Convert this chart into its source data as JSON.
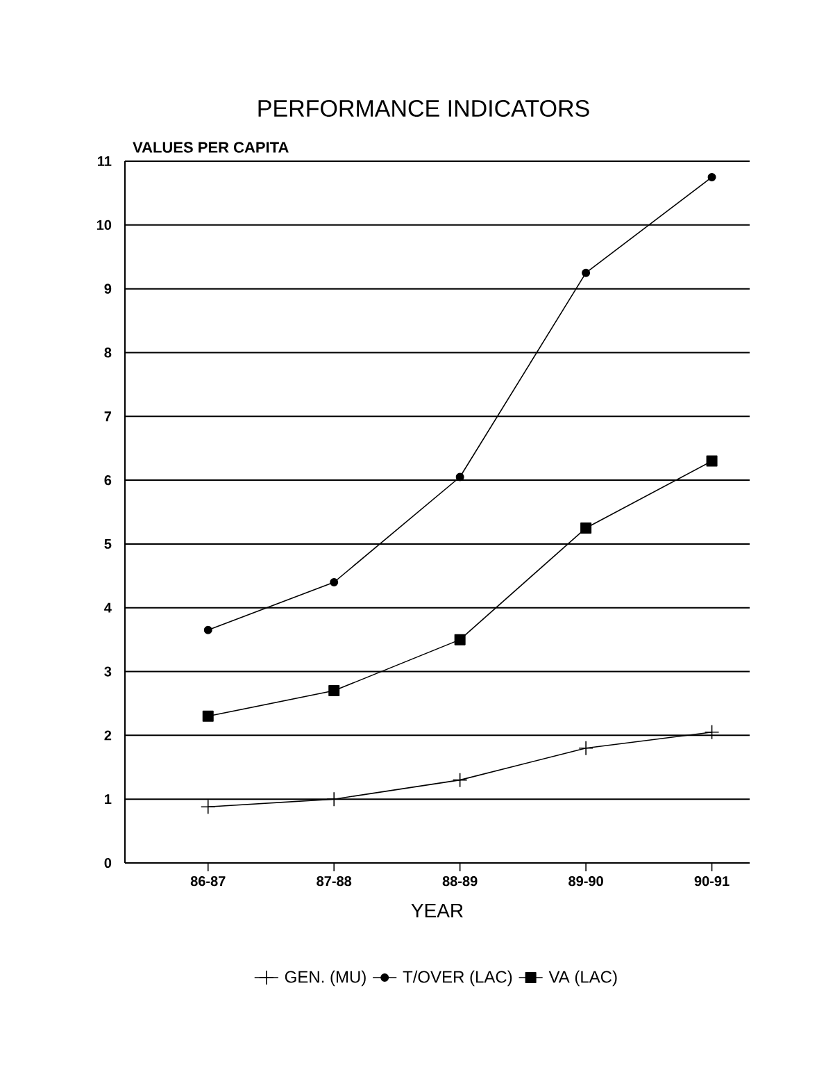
{
  "chart_data": {
    "type": "line",
    "title": "PERFORMANCE INDICATORS",
    "ylabel": "VALUES PER CAPITA",
    "xlabel": "YEAR",
    "categories": [
      "86-87",
      "87-88",
      "88-89",
      "89-90",
      "90-91"
    ],
    "series": [
      {
        "name": "GEN. (MU)",
        "color": "#000000",
        "marker": "cross",
        "values": [
          0.88,
          1.0,
          1.3,
          1.8,
          2.05
        ]
      },
      {
        "name": "T/OVER (LAC)",
        "color": "#000000",
        "marker": "circle",
        "values": [
          3.65,
          4.4,
          6.05,
          9.25,
          10.75
        ]
      },
      {
        "name": "VA (LAC)",
        "color": "#000000",
        "marker": "square",
        "values": [
          2.3,
          2.7,
          3.5,
          5.25,
          6.3
        ]
      }
    ],
    "ylim": [
      0,
      11
    ],
    "yticks": [
      0,
      1,
      2,
      3,
      4,
      5,
      6,
      7,
      8,
      9,
      10,
      11
    ],
    "grid": "y",
    "legend": "bottom",
    "line_style": "solid"
  }
}
